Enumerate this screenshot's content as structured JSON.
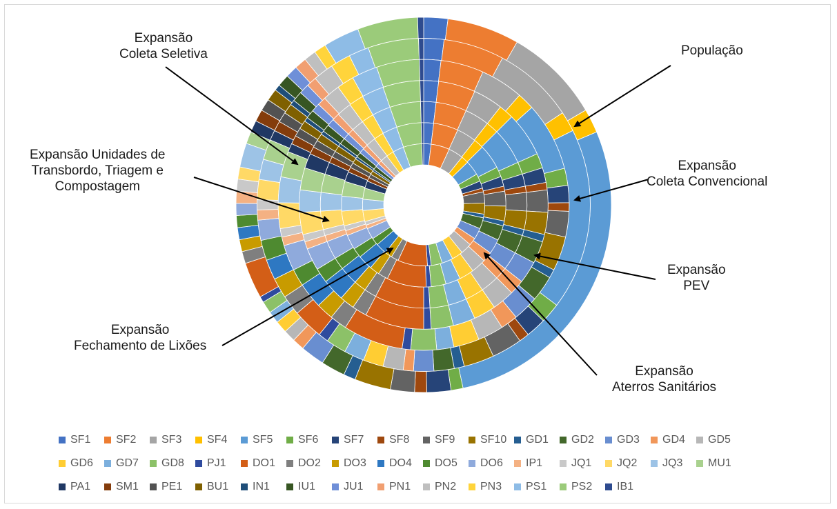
{
  "chart_data": {
    "type": "doughnut",
    "categories": [
      "SF1",
      "SF2",
      "SF3",
      "SF4",
      "SF5",
      "SF6",
      "SF7",
      "SF8",
      "SF9",
      "SF10",
      "GD1",
      "GD2",
      "GD3",
      "GD4",
      "GD5",
      "GD6",
      "GD7",
      "GD8",
      "PJ1",
      "DO1",
      "DO2",
      "DO3",
      "DO4",
      "DO5",
      "DO6",
      "IP1",
      "JQ1",
      "JQ2",
      "JQ3",
      "MU1",
      "PA1",
      "SM1",
      "PE1",
      "BU1",
      "IN1",
      "IU1",
      "JU1",
      "PN1",
      "PN2",
      "PN3",
      "PS1",
      "PS2",
      "IB1"
    ],
    "colors": [
      "#4472C4",
      "#ED7D31",
      "#A5A5A5",
      "#FFC000",
      "#5B9BD5",
      "#70AD47",
      "#264478",
      "#9E480E",
      "#636363",
      "#997300",
      "#255E91",
      "#43682B",
      "#698ED0",
      "#F1975A",
      "#B7B7B7",
      "#FFCD33",
      "#7CAFDD",
      "#8CC168",
      "#2F4B9E",
      "#D35E17",
      "#7F7F7F",
      "#C89B00",
      "#2E78C2",
      "#4E8A30",
      "#8FAADC",
      "#F4B183",
      "#C9C9C9",
      "#FFD966",
      "#9DC3E6",
      "#A9D18E",
      "#203864",
      "#843C0C",
      "#525252",
      "#7F6000",
      "#1F4E79",
      "#375623",
      "#6F8FD8",
      "#F19F71",
      "#BFBFBF",
      "#FFD43B",
      "#8EBCE6",
      "#9BCB7A",
      "#2E4B8F"
    ],
    "series": [
      {
        "name": "População",
        "values": [
          2.0,
          6.0,
          8.0,
          2.0,
          27.0,
          1.0,
          2.0,
          1.0,
          2.0,
          3.0,
          1.0,
          2.0,
          2.0,
          1.0,
          1.0,
          1.0,
          1.0,
          1.0,
          0.5,
          3.0,
          1.0,
          1.0,
          1.0,
          1.0,
          1.0,
          1.0,
          1.0,
          1.0,
          2.0,
          1.0,
          1.0,
          1.0,
          1.0,
          1.0,
          0.5,
          1.0,
          1.0,
          1.0,
          1.0,
          1.0,
          3.0,
          5.0,
          0.5
        ]
      },
      {
        "name": "Expansão Coleta Convencional",
        "values": [
          2.0,
          6.0,
          8.0,
          2.0,
          18.0,
          2.0,
          2.0,
          1.0,
          3.0,
          3.0,
          1.0,
          2.0,
          2.0,
          1.0,
          2.0,
          2.0,
          2.0,
          2.0,
          1.0,
          3.0,
          2.0,
          2.0,
          2.0,
          2.0,
          2.0,
          1.0,
          1.0,
          2.0,
          2.0,
          2.0,
          1.0,
          1.0,
          1.0,
          1.0,
          0.5,
          1.0,
          1.0,
          1.0,
          2.0,
          2.0,
          2.0,
          5.0,
          0.5
        ]
      },
      {
        "name": "Expansão PEV",
        "values": [
          2.0,
          5.0,
          5.0,
          2.0,
          8.0,
          2.0,
          2.0,
          1.0,
          3.0,
          4.0,
          1.0,
          3.0,
          3.0,
          2.0,
          3.0,
          3.0,
          2.0,
          3.0,
          1.0,
          7.0,
          2.0,
          2.0,
          3.0,
          2.0,
          3.0,
          1.0,
          1.0,
          3.0,
          3.0,
          3.0,
          1.0,
          1.0,
          1.0,
          1.0,
          0.5,
          1.0,
          1.0,
          1.0,
          2.0,
          2.0,
          3.0,
          5.0,
          0.5
        ]
      },
      {
        "name": "Expansão Aterros Sanitários",
        "values": [
          2.0,
          5.0,
          4.0,
          2.0,
          6.0,
          2.0,
          2.0,
          1.0,
          3.0,
          3.0,
          1.0,
          3.0,
          3.0,
          2.0,
          3.0,
          3.0,
          3.0,
          3.0,
          1.0,
          8.0,
          2.0,
          2.0,
          3.0,
          2.0,
          3.0,
          1.0,
          1.0,
          3.0,
          3.0,
          3.0,
          2.0,
          1.0,
          1.0,
          1.0,
          0.5,
          1.0,
          1.0,
          1.0,
          2.0,
          2.0,
          3.0,
          5.0,
          0.5
        ]
      },
      {
        "name": "Expansão Fechamento de Lixões",
        "values": [
          2.0,
          5.0,
          4.0,
          2.0,
          6.0,
          2.0,
          2.0,
          1.0,
          3.0,
          3.0,
          1.0,
          3.0,
          3.0,
          2.0,
          3.0,
          3.0,
          3.0,
          3.0,
          1.0,
          8.0,
          2.0,
          2.0,
          3.0,
          2.0,
          3.0,
          1.0,
          1.0,
          3.0,
          3.0,
          3.0,
          2.0,
          1.0,
          1.0,
          1.0,
          0.5,
          1.0,
          1.0,
          1.0,
          2.0,
          2.0,
          3.0,
          5.0,
          0.5
        ]
      },
      {
        "name": "Expansão Unidades de Transbordo, Triagem e Compostagem",
        "values": [
          2.0,
          5.0,
          4.0,
          2.0,
          5.0,
          2.0,
          2.0,
          1.0,
          3.0,
          3.0,
          1.0,
          3.0,
          3.0,
          2.0,
          3.0,
          3.0,
          3.0,
          3.0,
          1.0,
          8.0,
          2.0,
          2.0,
          3.0,
          2.0,
          3.0,
          1.0,
          1.0,
          3.0,
          3.0,
          3.0,
          2.0,
          1.0,
          1.0,
          1.0,
          0.5,
          1.0,
          1.0,
          1.0,
          2.0,
          2.0,
          3.0,
          5.0,
          0.5
        ]
      },
      {
        "name": "Expansão Coleta Seletiva",
        "values": [
          2.0,
          5.0,
          4.0,
          2.0,
          4.0,
          2.0,
          2.0,
          1.0,
          3.0,
          3.0,
          1.0,
          3.0,
          3.0,
          2.0,
          3.0,
          3.0,
          3.0,
          3.0,
          1.0,
          8.0,
          2.0,
          2.0,
          3.0,
          2.0,
          3.0,
          1.0,
          1.0,
          3.0,
          3.0,
          3.0,
          2.0,
          1.0,
          1.0,
          1.0,
          0.5,
          1.0,
          1.0,
          1.0,
          2.0,
          2.0,
          3.0,
          5.0,
          0.5
        ]
      }
    ],
    "annotations": [
      {
        "id": "populacao",
        "text": "População"
      },
      {
        "id": "coleta-convencional",
        "text": "Expansão\nColeta Convencional"
      },
      {
        "id": "pev",
        "text": "Expansão\nPEV"
      },
      {
        "id": "aterros",
        "text": "Expansão\nAterros Sanitários"
      },
      {
        "id": "lixoes",
        "text": "Expansão\nFechamento de Lixões"
      },
      {
        "id": "transbordo",
        "text": "Expansão Unidades de\nTransbordo, Triagem e\nCompostagem"
      },
      {
        "id": "coleta-seletiva",
        "text": "Expansão\nColeta Seletiva"
      }
    ],
    "legend_position": "bottom"
  }
}
